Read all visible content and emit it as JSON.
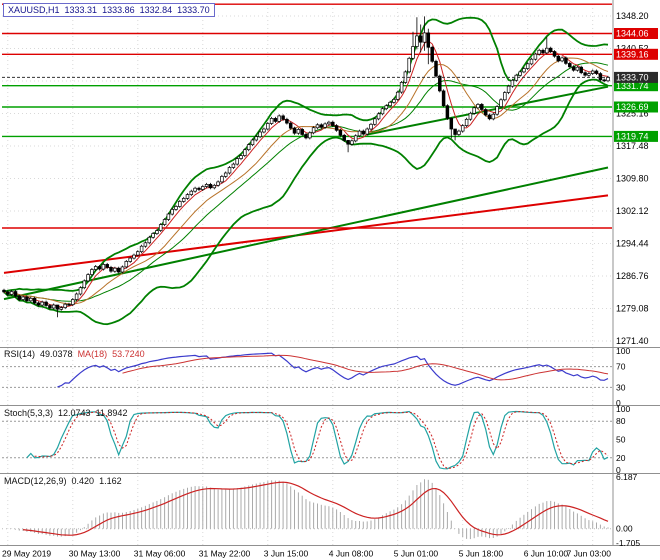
{
  "header": {
    "symbol_period": "XAUUSD,H1",
    "open": "1333.31",
    "high": "1333.86",
    "low": "1332.84",
    "close": "1333.70"
  },
  "colors": {
    "up_candle": "#ffffff",
    "down_candle": "#000000",
    "candle_border": "#000000",
    "bollinger": "#008000",
    "ma_fast": "#cc2222",
    "ma_slow": "#b8732a",
    "support": "#00a000",
    "resistance": "#dd0000",
    "grid": "#d9d9d9",
    "separator": "#909090",
    "current_price_badge": "#2b2b2b",
    "rsi_line": "#3b3bcc",
    "rsi_ma": "#cc3333",
    "stoch_k": "#22a3a3",
    "stoch_d": "#cc2222",
    "macd_hist": "#aaaaaa",
    "macd_signal": "#cc2222",
    "chip_border": "#6a6acc",
    "chip_text": "#14148c"
  },
  "panels": {
    "rsi": {
      "name": "RSI(14)",
      "value": "49.0378",
      "ma_name": "MA(18)",
      "ma_value": "53.7240",
      "levels": [
        70,
        30
      ],
      "scale_labels": [
        "100",
        "70",
        "30",
        "0"
      ],
      "range": [
        0,
        100
      ]
    },
    "stoch": {
      "name": "Stoch(5,3,3)",
      "value_k": "12.0743",
      "value_d": "11.8942",
      "levels": [
        80,
        20
      ],
      "scale_labels": [
        "100",
        "80",
        "50",
        "20",
        "0"
      ],
      "range": [
        0,
        100
      ]
    },
    "macd": {
      "name": "MACD(12,26,9)",
      "value_main": "0.420",
      "value_signal": "1.162",
      "scale_labels": [
        "6.187",
        "0.00",
        "-1.705"
      ],
      "range": [
        6.187,
        -1.705
      ]
    }
  },
  "chart_data": {
    "type": "candlestick",
    "symbol": "XAUUSD",
    "timeframe": "H1",
    "title": "XAUUSD,H1 1333.31 1333.86 1332.84 1333.70",
    "price_axis": {
      "min": 1271.4,
      "max": 1348.2,
      "ticks": [
        "1348.20",
        "1340.52",
        "1332.84",
        "1325.16",
        "1317.48",
        "1309.80",
        "1302.12",
        "1294.44",
        "1286.76",
        "1279.08",
        "1271.40"
      ]
    },
    "time_axis": {
      "labels": [
        "29 May 2019",
        "30 May 13:00",
        "31 May 06:00",
        "31 May 22:00",
        "3 Jun 15:00",
        "4 Jun 08:00",
        "5 Jun 01:00",
        "5 Jun 18:00",
        "6 Jun 10:00",
        "7 Jun 03:00"
      ],
      "tick_bars": [
        1,
        18,
        35,
        52,
        69,
        86,
        103,
        120,
        137,
        154
      ]
    },
    "first_open": 1283.4,
    "closes": [
      1283.0,
      1282.4,
      1283.1,
      1282.0,
      1281.2,
      1281.8,
      1280.9,
      1281.5,
      1280.4,
      1279.9,
      1280.6,
      1279.8,
      1279.2,
      1279.9,
      1278.9,
      1279.3,
      1280.1,
      1280.0,
      1281.2,
      1282.5,
      1284.0,
      1285.6,
      1287.1,
      1288.3,
      1289.0,
      1288.4,
      1289.5,
      1288.8,
      1287.9,
      1288.6,
      1287.7,
      1288.9,
      1290.2,
      1291.0,
      1291.7,
      1292.5,
      1293.8,
      1294.6,
      1295.9,
      1296.8,
      1297.5,
      1298.9,
      1300.1,
      1301.4,
      1302.5,
      1303.2,
      1304.4,
      1305.1,
      1306.0,
      1306.8,
      1307.5,
      1307.2,
      1307.9,
      1308.4,
      1307.6,
      1308.2,
      1309.0,
      1310.3,
      1311.1,
      1312.4,
      1313.2,
      1314.5,
      1315.2,
      1316.6,
      1317.8,
      1318.9,
      1319.7,
      1320.8,
      1321.5,
      1322.8,
      1324.0,
      1323.3,
      1324.6,
      1323.8,
      1322.9,
      1321.7,
      1320.5,
      1321.4,
      1320.2,
      1319.4,
      1320.6,
      1321.8,
      1322.5,
      1321.9,
      1322.7,
      1323.1,
      1322.3,
      1321.2,
      1320.0,
      1318.8,
      1317.9,
      1318.7,
      1319.9,
      1321.0,
      1320.3,
      1321.5,
      1322.6,
      1323.9,
      1325.1,
      1326.3,
      1327.0,
      1327.8,
      1328.5,
      1330.2,
      1332.5,
      1335.0,
      1338.2,
      1341.0,
      1343.5,
      1342.0,
      1344.2,
      1340.8,
      1337.5,
      1334.0,
      1330.5,
      1327.0,
      1324.0,
      1321.5,
      1320.2,
      1321.0,
      1322.3,
      1323.8,
      1325.2,
      1326.5,
      1327.3,
      1326.1,
      1324.8,
      1323.9,
      1325.0,
      1326.8,
      1328.4,
      1330.1,
      1331.6,
      1333.0,
      1334.2,
      1335.0,
      1335.8,
      1336.9,
      1338.0,
      1339.2,
      1340.1,
      1339.5,
      1340.6,
      1339.8,
      1338.7,
      1337.6,
      1338.3,
      1337.0,
      1336.2,
      1335.4,
      1336.1,
      1334.8,
      1334.2,
      1334.6,
      1335.2,
      1334.6,
      1333.1,
      1332.9,
      1333.7
    ],
    "wick_overrides": {
      "14": [
        1279.9,
        1277.0
      ],
      "90": [
        1318.9,
        1316.0
      ],
      "107": [
        1344.5,
        1337.8
      ],
      "108": [
        1347.9,
        1340.3
      ],
      "109": [
        1346.2,
        1339.6
      ],
      "110": [
        1348.1,
        1340.0
      ],
      "111": [
        1345.2,
        1336.8
      ],
      "117": [
        1324.2,
        1319.3
      ],
      "118": [
        1321.4,
        1318.8
      ],
      "142": [
        1343.2,
        1339.2
      ]
    },
    "horizontal_lines": [
      {
        "price": 1351.0,
        "color": "#dd0000",
        "badge": false
      },
      {
        "price": 1344.06,
        "color": "#dd0000",
        "badge": true
      },
      {
        "price": 1339.16,
        "color": "#dd0000",
        "badge": true
      },
      {
        "price": 1331.74,
        "color": "#00a000",
        "badge": true
      },
      {
        "price": 1326.69,
        "color": "#00a000",
        "badge": true
      },
      {
        "price": 1319.74,
        "color": "#00a000",
        "badge": true
      },
      {
        "price": 1298.1,
        "color": "#dd0000",
        "badge": false
      }
    ],
    "current_price": {
      "price": 1333.7,
      "label": "1333.70"
    },
    "trendlines": [
      {
        "bar1": 0,
        "price1": 1287.5,
        "bar2": 158,
        "price2": 1305.8,
        "color": "#dd0000"
      },
      {
        "bar1": 0,
        "price1": 1281.3,
        "bar2": 158,
        "price2": 1312.4,
        "color": "#008000"
      },
      {
        "bar1": 95,
        "price1": 1320.2,
        "bar2": 158,
        "price2": 1331.5,
        "color": "#008000"
      }
    ],
    "indicator_settings": {
      "bollinger": [
        20,
        2
      ],
      "ma_fast": 5,
      "ma_slow": 13,
      "rsi": 14,
      "rsi_ma": 18,
      "stoch": [
        5,
        3,
        3
      ],
      "macd": [
        12,
        26,
        9
      ]
    }
  }
}
